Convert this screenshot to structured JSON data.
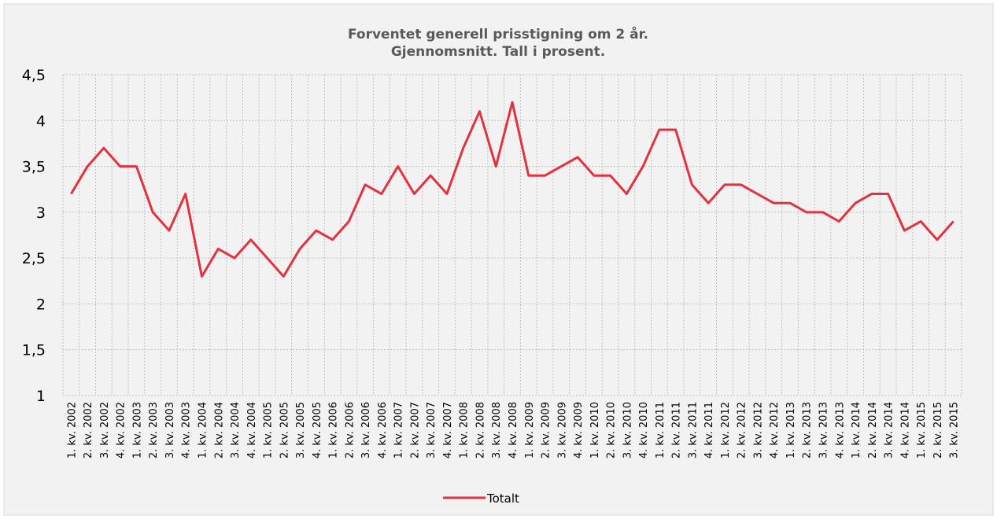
{
  "chart_data": {
    "type": "line",
    "title": "Forventet generell prisstigning om 2 år.",
    "subtitle": "Gjennomsnitt. Tall i prosent.",
    "categories": [
      "1. kv. 2002",
      "2. kv. 2002",
      "3. kv. 2002",
      "4. kv. 2002",
      "1. kv. 2003",
      "2. kv. 2003",
      "3. kv. 2003",
      "4. kv. 2003",
      "1. kv. 2004",
      "2. kv. 2004",
      "3. kv. 2004",
      "4. kv. 2004",
      "1. kv. 2005",
      "2. kv. 2005",
      "3. kv. 2005",
      "4. kv. 2005",
      "1. kv. 2006",
      "2. kv. 2006",
      "3. kv. 2006",
      "4. kv. 2006",
      "1. kv. 2007",
      "2. kv. 2007",
      "3. kv. 2007",
      "4. kv. 2007",
      "1. kv. 2008",
      "2. kv. 2008",
      "3. kv. 2008",
      "4. kv. 2008",
      "1. kv. 2009",
      "2. kv. 2009",
      "3. kv. 2009",
      "4. kv. 2009",
      "1. kv. 2010",
      "2. kv. 2010",
      "3. kv. 2010",
      "4. kv. 2010",
      "1. kv. 2011",
      "2. kv. 2011",
      "3. kv. 2011",
      "4. kv. 2011",
      "1. kv. 2012",
      "2. kv. 2012",
      "3. kv. 2012",
      "4. kv. 2012",
      "1. kv. 2013",
      "2. kv. 2013",
      "3. kv. 2013",
      "4. kv. 2013",
      "1. kv. 2014",
      "2. kv. 2014",
      "3. kv. 2014",
      "4. kv. 2014",
      "1. kv. 2015",
      "2. kv. 2015",
      "3. kv. 2015"
    ],
    "series": [
      {
        "name": "Totalt",
        "color": "#e2323f",
        "values": [
          3.2,
          3.5,
          3.7,
          3.5,
          3.5,
          3.0,
          2.8,
          3.2,
          2.3,
          2.6,
          2.5,
          2.7,
          2.5,
          2.3,
          2.6,
          2.8,
          2.7,
          2.9,
          3.3,
          3.2,
          3.5,
          3.2,
          3.4,
          3.2,
          3.7,
          4.1,
          3.5,
          4.2,
          3.4,
          3.4,
          3.5,
          3.6,
          3.4,
          3.4,
          3.2,
          3.5,
          3.9,
          3.9,
          3.3,
          3.1,
          3.3,
          3.3,
          3.2,
          3.1,
          3.1,
          3.0,
          3.0,
          2.9,
          3.1,
          3.2,
          3.2,
          2.8,
          2.9,
          2.7,
          2.9
        ]
      }
    ],
    "ylim": [
      1,
      4.5
    ],
    "yticks": [
      1,
      {
        "value": 1.5,
        "label": "1,5"
      },
      2,
      {
        "value": 2.5,
        "label": "2,5"
      },
      3,
      {
        "value": 3.5,
        "label": "3,5"
      },
      4,
      {
        "value": 4.5,
        "label": "4,5"
      }
    ],
    "grid": true,
    "legend": "bottom"
  }
}
